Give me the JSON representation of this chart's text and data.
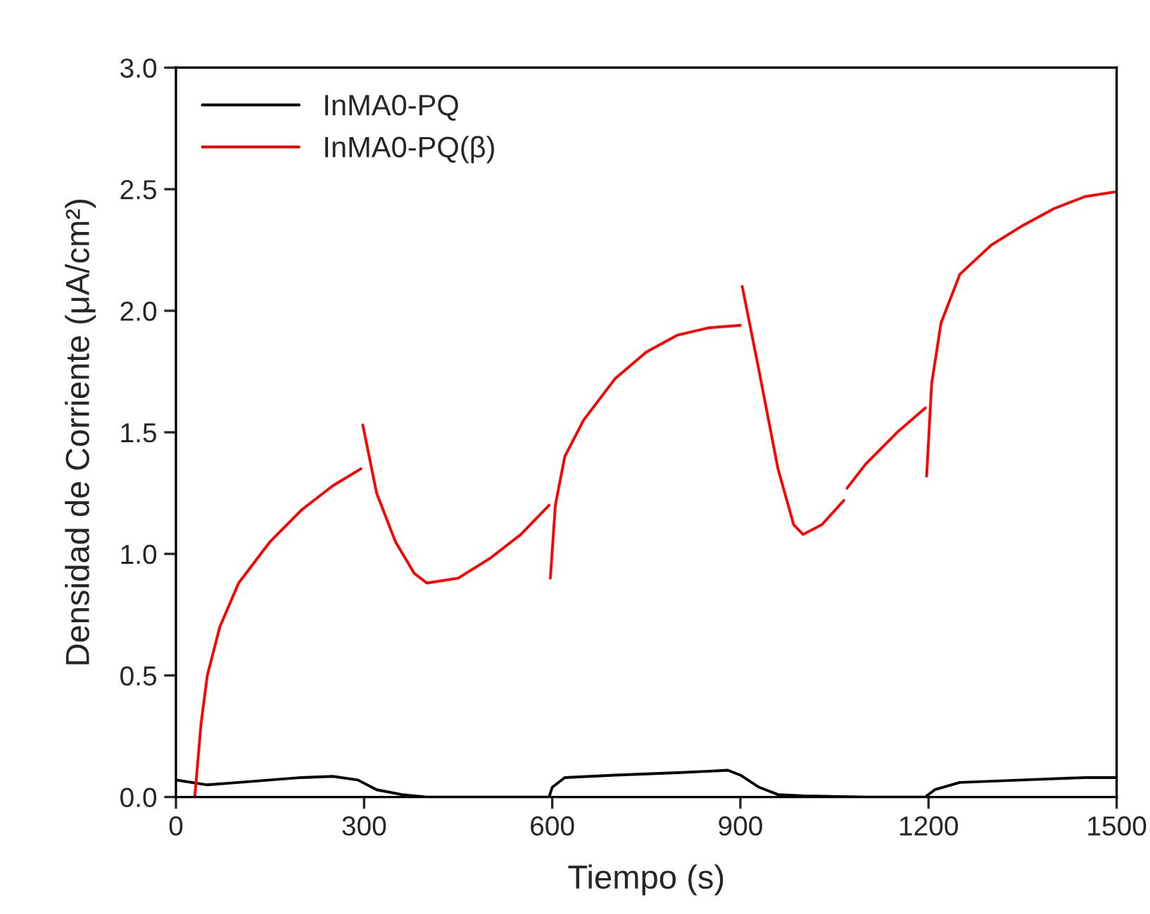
{
  "chart_data": {
    "type": "line",
    "xlabel": "Tiempo (s)",
    "ylabel": "Densidad de Corriente (μA/cm²)",
    "xlim": [
      0,
      1500
    ],
    "xticks": [
      0,
      300,
      600,
      900,
      1200,
      1500
    ],
    "ylim": [
      0,
      3.0
    ],
    "yticks": [
      {
        "value": 0,
        "label": "0.0"
      },
      {
        "value": 0.5,
        "label": "0.5"
      },
      {
        "value": 1.0,
        "label": "1.0"
      },
      {
        "value": 1.5,
        "label": "1.5"
      },
      {
        "value": 2.0,
        "label": "2.0"
      },
      {
        "value": 2.5,
        "label": "2.5"
      },
      {
        "value": 3.0,
        "label": "3.0"
      }
    ],
    "grid": false,
    "legend": "top left",
    "marker": "none",
    "line_style": "solid",
    "series": [
      {
        "name": "InMA0-PQ",
        "color": "#000000",
        "x": [
          0,
          50,
          100,
          150,
          200,
          250,
          290,
          320,
          360,
          400,
          500,
          595,
          600,
          620,
          700,
          800,
          880,
          900,
          930,
          960,
          1000,
          1100,
          1195,
          1210,
          1250,
          1350,
          1450,
          1500
        ],
        "values": [
          0.07,
          0.05,
          0.06,
          0.07,
          0.08,
          0.085,
          0.07,
          0.03,
          0.01,
          0.0,
          0.0,
          0.0,
          0.04,
          0.08,
          0.09,
          0.1,
          0.11,
          0.09,
          0.04,
          0.01,
          0.005,
          0.0,
          0.0,
          0.03,
          0.06,
          0.07,
          0.08,
          0.08
        ]
      },
      {
        "name": "InMA0-PQ(β)",
        "color": "#ff0000",
        "x": [
          30,
          40,
          50,
          70,
          100,
          150,
          200,
          250,
          295,
          296,
          298,
          320,
          350,
          380,
          400,
          450,
          500,
          550,
          595,
          596,
          597,
          605,
          620,
          650,
          700,
          750,
          800,
          850,
          900,
          901,
          903,
          930,
          960,
          985,
          1000,
          1030,
          1065,
          1067,
          1070,
          1100,
          1150,
          1195,
          1196,
          1197,
          1205,
          1220,
          1250,
          1300,
          1350,
          1400,
          1450,
          1500
        ],
        "values": [
          0.0,
          0.3,
          0.5,
          0.7,
          0.88,
          1.05,
          1.18,
          1.28,
          1.35,
          null,
          1.53,
          1.25,
          1.05,
          0.92,
          0.88,
          0.9,
          0.98,
          1.08,
          1.2,
          null,
          0.9,
          1.2,
          1.4,
          1.55,
          1.72,
          1.83,
          1.9,
          1.93,
          1.94,
          null,
          2.1,
          1.75,
          1.35,
          1.12,
          1.08,
          1.12,
          1.22,
          null,
          1.27,
          1.37,
          1.5,
          1.6,
          null,
          1.32,
          1.7,
          1.95,
          2.15,
          2.27,
          2.35,
          2.42,
          2.47,
          2.49
        ]
      }
    ]
  }
}
